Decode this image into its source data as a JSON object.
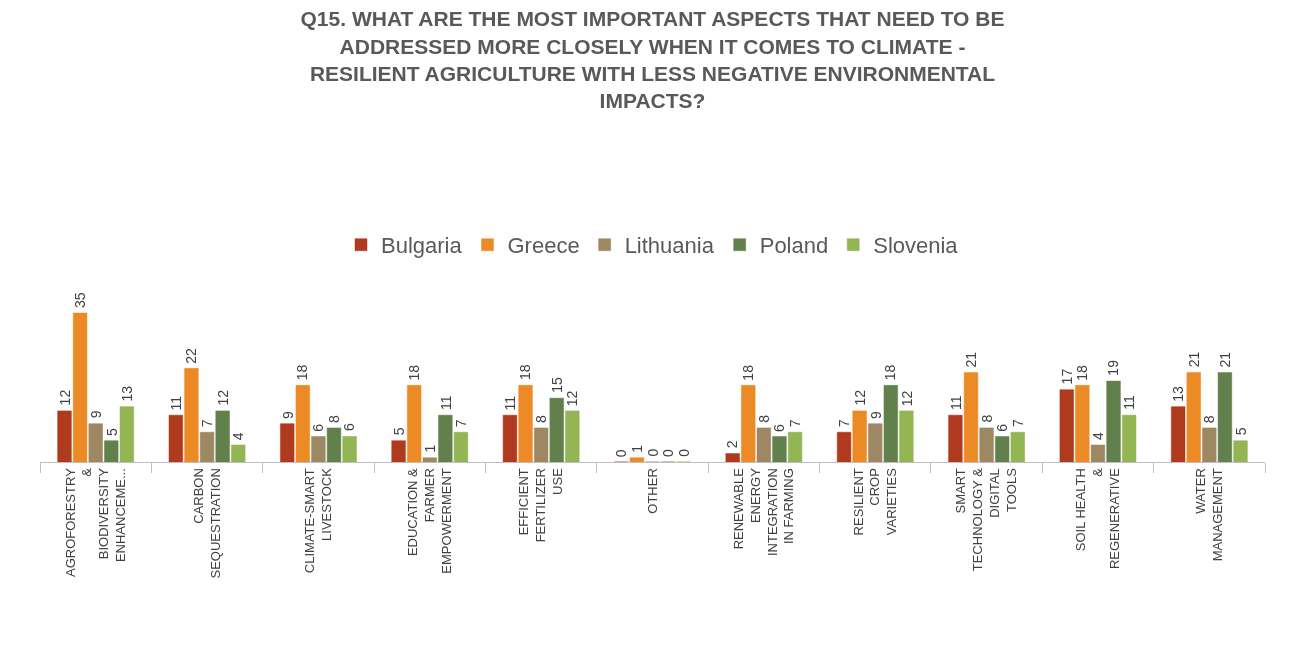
{
  "chart_data": {
    "type": "bar",
    "title": "Q15. WHAT ARE THE MOST IMPORTANT ASPECTS THAT NEED TO BE ADDRESSED MORE CLOSELY WHEN IT COMES TO CLIMATE - RESILIENT AGRICULTURE WITH LESS NEGATIVE ENVIRONMENTAL IMPACTS?",
    "categories": [
      "AGROFORESTRY & BIODIVERSITY ENHANCEME...",
      "CARBON SEQUESTRATION",
      "CLIMATE-SMART LIVESTOCK",
      "EDUCATION & FARMER EMPOWERMENT",
      "EFFICIENT FERTILIZER USE",
      "OTHER",
      "RENEWABLE ENERGY INTEGRATION IN FARMING",
      "RESILIENT CROP VARIETIES",
      "SMART TECHNOLOGY & DIGITAL TOOLS",
      "SOIL HEALTH & REGENERATIVE",
      "WATER MANAGEMENT"
    ],
    "series": [
      {
        "name": "Bulgaria",
        "color": "#b03a1e",
        "values": [
          12,
          11,
          9,
          5,
          11,
          0,
          2,
          7,
          11,
          17,
          13
        ]
      },
      {
        "name": "Greece",
        "color": "#ec8a26",
        "values": [
          35,
          22,
          18,
          18,
          18,
          1,
          18,
          12,
          21,
          18,
          21
        ]
      },
      {
        "name": "Lithuania",
        "color": "#9e8763",
        "values": [
          9,
          7,
          6,
          1,
          8,
          0,
          8,
          9,
          8,
          4,
          8
        ]
      },
      {
        "name": "Poland",
        "color": "#62804c",
        "values": [
          5,
          12,
          8,
          11,
          15,
          0,
          6,
          18,
          6,
          19,
          21
        ]
      },
      {
        "name": "Slovenia",
        "color": "#93b554",
        "values": [
          13,
          4,
          6,
          7,
          12,
          0,
          7,
          12,
          7,
          11,
          5
        ]
      }
    ],
    "data_labels": true,
    "legend": "top"
  }
}
